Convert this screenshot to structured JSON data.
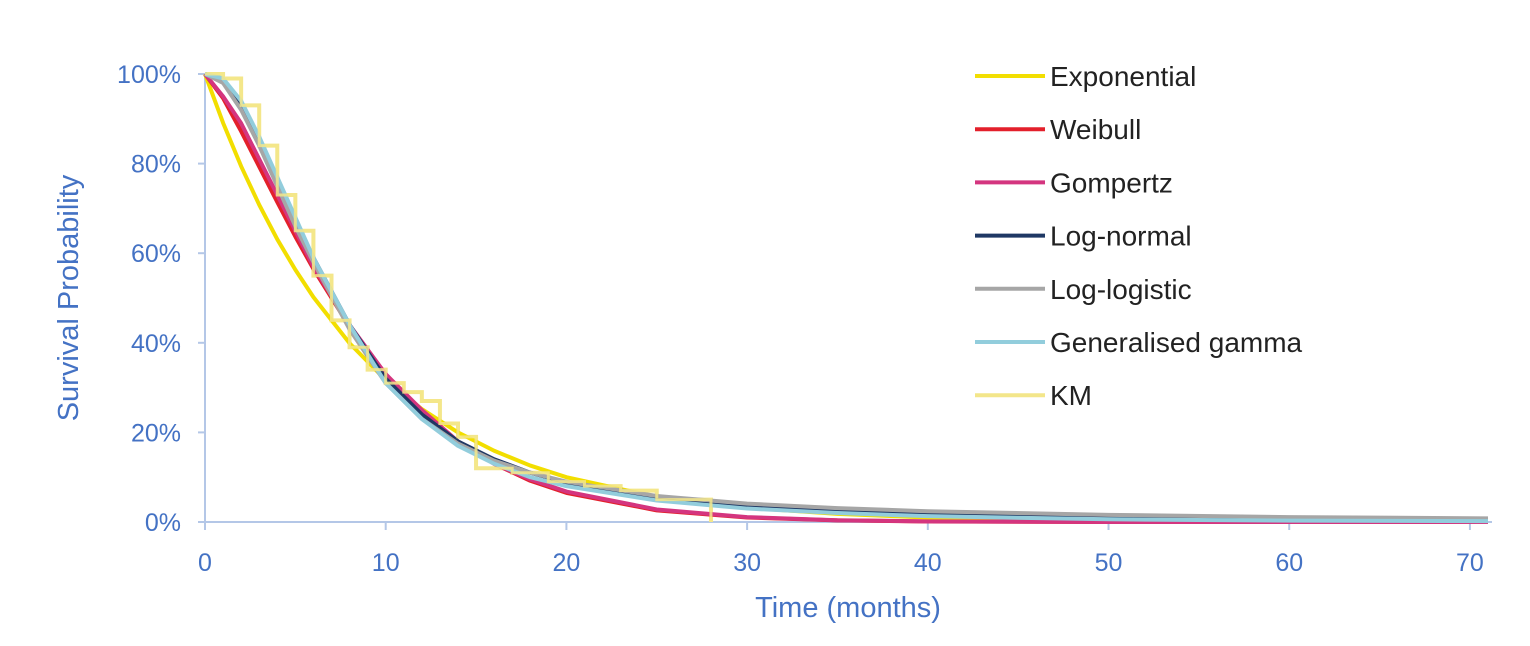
{
  "chart_data": {
    "type": "line",
    "title": "",
    "xlabel": "Time (months)",
    "ylabel": "Survival Probability",
    "xlim": [
      0,
      71
    ],
    "ylim": [
      0,
      1
    ],
    "xticks": [
      0,
      10,
      20,
      30,
      40,
      50,
      60,
      70
    ],
    "xtick_labels": [
      "0",
      "10",
      "20",
      "30",
      "40",
      "50",
      "60",
      "70"
    ],
    "yticks": [
      0,
      0.2,
      0.4,
      0.6,
      0.8,
      1.0
    ],
    "ytick_labels": [
      "0%",
      "20%",
      "40%",
      "60%",
      "80%",
      "100%"
    ],
    "grid": false,
    "legend_position": "top-right",
    "x": [
      0,
      1,
      2,
      3,
      4,
      5,
      6,
      8,
      10,
      12,
      14,
      16,
      18,
      20,
      25,
      30,
      35,
      40,
      50,
      60,
      71
    ],
    "series": [
      {
        "name": "Exponential",
        "color": "#f2de00",
        "values": [
          1,
          0.891,
          0.794,
          0.708,
          0.631,
          0.563,
          0.502,
          0.399,
          0.317,
          0.252,
          0.2,
          0.159,
          0.126,
          0.1,
          0.056,
          0.032,
          0.018,
          0.01,
          0.003,
          0.001,
          0.0003
        ]
      },
      {
        "name": "Weibull",
        "color": "#e3202b",
        "values": [
          1,
          0.946,
          0.872,
          0.793,
          0.714,
          0.637,
          0.565,
          0.436,
          0.33,
          0.245,
          0.179,
          0.13,
          0.092,
          0.065,
          0.026,
          0.01,
          0.0035,
          0.0012,
          0,
          0,
          0
        ]
      },
      {
        "name": "Gompertz",
        "color": "#d4357f",
        "values": [
          1,
          0.95,
          0.89,
          0.81,
          0.73,
          0.65,
          0.57,
          0.44,
          0.33,
          0.25,
          0.18,
          0.13,
          0.095,
          0.068,
          0.028,
          0.011,
          0.004,
          0.0015,
          0,
          0,
          0
        ]
      },
      {
        "name": "Log-normal",
        "color": "#1f3864",
        "values": [
          1,
          0.985,
          0.93,
          0.85,
          0.76,
          0.67,
          0.59,
          0.44,
          0.32,
          0.24,
          0.18,
          0.14,
          0.11,
          0.088,
          0.055,
          0.037,
          0.026,
          0.019,
          0.011,
          0.007,
          0.005
        ]
      },
      {
        "name": "Log-logistic",
        "color": "#a6a6a6",
        "values": [
          1,
          0.98,
          0.92,
          0.84,
          0.75,
          0.66,
          0.58,
          0.43,
          0.31,
          0.23,
          0.175,
          0.137,
          0.11,
          0.09,
          0.058,
          0.041,
          0.031,
          0.024,
          0.016,
          0.011,
          0.008
        ]
      },
      {
        "name": "Generalised gamma",
        "color": "#92cddc",
        "values": [
          1,
          0.99,
          0.94,
          0.86,
          0.77,
          0.68,
          0.59,
          0.44,
          0.31,
          0.23,
          0.17,
          0.13,
          0.1,
          0.08,
          0.048,
          0.03,
          0.02,
          0.013,
          0.006,
          0.003,
          0.002
        ]
      }
    ],
    "km": {
      "name": "KM",
      "color": "#f3e68a",
      "steps": [
        [
          0,
          1
        ],
        [
          1,
          0.99
        ],
        [
          2,
          0.93
        ],
        [
          3,
          0.84
        ],
        [
          4,
          0.73
        ],
        [
          5,
          0.65
        ],
        [
          6,
          0.55
        ],
        [
          7,
          0.45
        ],
        [
          8,
          0.39
        ],
        [
          9,
          0.34
        ],
        [
          10,
          0.31
        ],
        [
          11,
          0.29
        ],
        [
          12,
          0.27
        ],
        [
          13,
          0.22
        ],
        [
          14,
          0.19
        ],
        [
          15,
          0.12
        ],
        [
          17,
          0.11
        ],
        [
          19,
          0.09
        ],
        [
          21,
          0.08
        ],
        [
          23,
          0.07
        ],
        [
          25,
          0.05
        ],
        [
          28,
          0
        ]
      ]
    }
  }
}
